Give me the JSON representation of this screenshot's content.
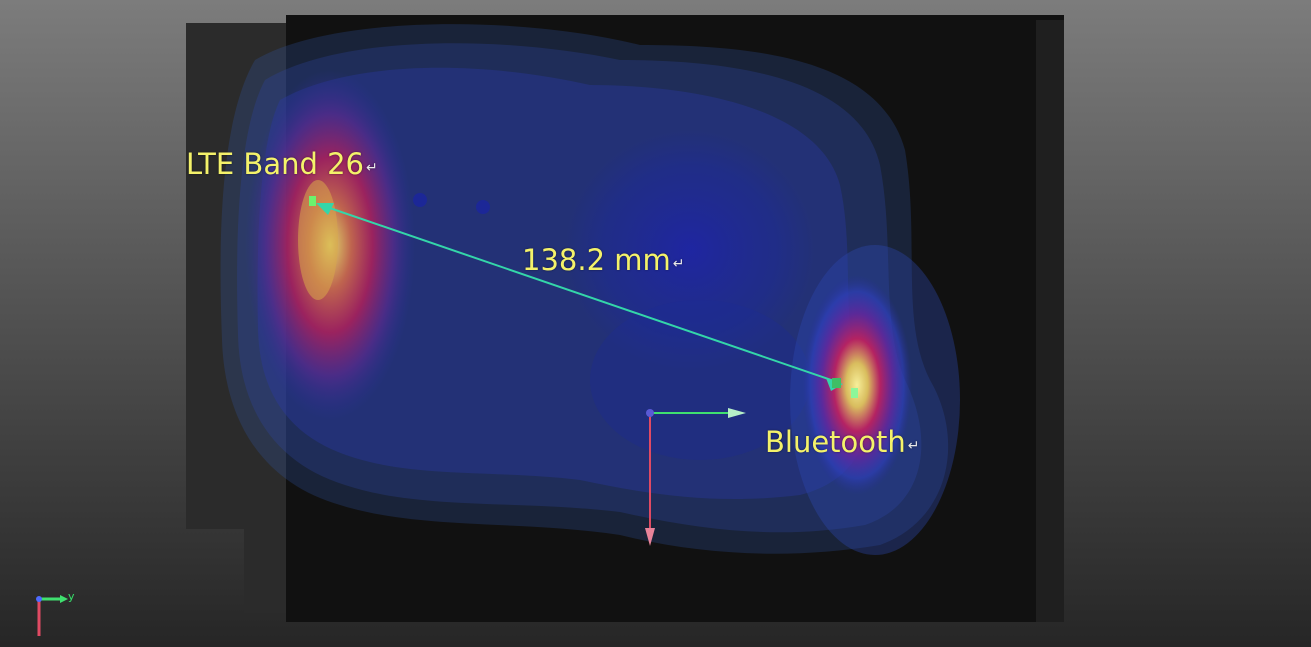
{
  "annotations": {
    "lte": {
      "text": "LTE Band 26",
      "return_glyph": "↵"
    },
    "distance": {
      "text": "138.2 mm",
      "return_glyph": "↵"
    },
    "bluetooth": {
      "text": "Bluetooth",
      "return_glyph": "↵"
    }
  },
  "axis_triad": {
    "y_label": "y"
  },
  "colors": {
    "label_text": "#f4f26a",
    "measure_line": "#34d6a9",
    "marker": "#6cf36d",
    "axis_x": "#3fe06f",
    "axis_y": "#e04a63",
    "hot_spot_core": "#f1e36a",
    "hot_spot_mid": "#c5205f",
    "field_low": "#2a3ea5"
  }
}
